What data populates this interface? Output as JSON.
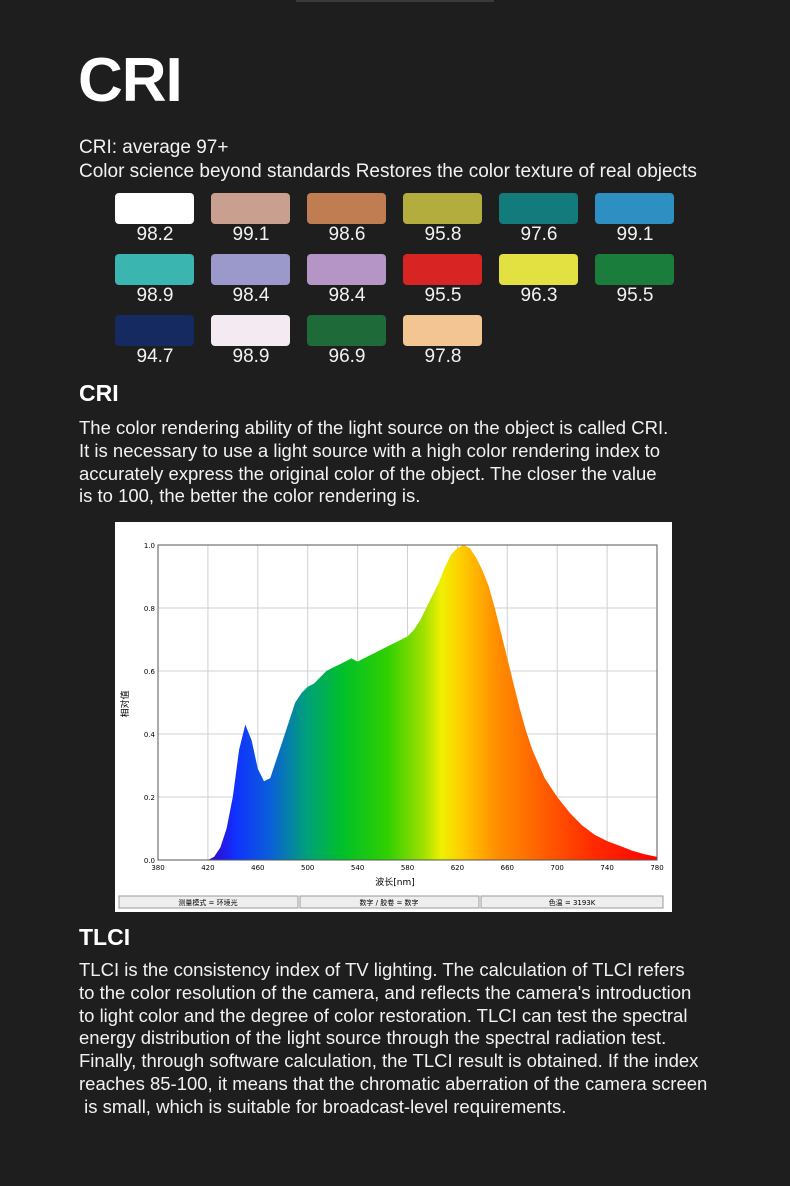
{
  "header": {
    "title": "CRI",
    "average_line": "CRI: average 97+",
    "tagline": "Color science beyond standards Restores the color texture of real objects"
  },
  "swatches": [
    {
      "color": "#ffffff",
      "value": "98.2"
    },
    {
      "color": "#c9a08f",
      "value": "99.1"
    },
    {
      "color": "#c07d51",
      "value": "98.6"
    },
    {
      "color": "#b2ad3c",
      "value": "95.8"
    },
    {
      "color": "#137b7b",
      "value": "97.6"
    },
    {
      "color": "#2e90c2",
      "value": "99.1"
    },
    {
      "color": "#3ab5b0",
      "value": "98.9"
    },
    {
      "color": "#9b98cc",
      "value": "98.4"
    },
    {
      "color": "#b495c6",
      "value": "98.4"
    },
    {
      "color": "#d92424",
      "value": "95.5"
    },
    {
      "color": "#e3e042",
      "value": "96.3"
    },
    {
      "color": "#1b7d3c",
      "value": "95.5"
    },
    {
      "color": "#152a60",
      "value": "94.7"
    },
    {
      "color": "#f4ebf2",
      "value": "98.9"
    },
    {
      "color": "#1e6a38",
      "value": "96.9"
    },
    {
      "color": "#f2c592",
      "value": "97.8"
    }
  ],
  "cri_section": {
    "heading": "CRI",
    "lines": [
      "The color rendering ability of the light source on the object is called CRI.",
      "It is necessary to use a light source with a high color rendering index to",
      "accurately express the original color of the object. The closer the value",
      "is to 100, the better the color rendering is."
    ]
  },
  "tlci_section": {
    "heading": "TLCI",
    "lines": [
      "TLCI is the consistency index of TV lighting. The calculation of TLCI refers",
      "to the color resolution of the camera, and reflects the camera's introduction",
      "to light color and the degree of color restoration. TLCI can test the spectral",
      "energy distribution of the light source through the spectral radiation test.",
      "Finally, through software calculation, the TLCI result is obtained. If the index",
      "reaches 85-100, it means that the chromatic aberration of the camera screen",
      " is small, which is suitable for broadcast-level requirements."
    ]
  },
  "chart_data": {
    "type": "area",
    "title": "",
    "xlabel": "波长[nm]",
    "ylabel": "相对值",
    "xlim": [
      380,
      780
    ],
    "ylim": [
      0,
      1.0
    ],
    "x_ticks": [
      "380",
      "420",
      "460",
      "500",
      "540",
      "580",
      "620",
      "660",
      "700",
      "740",
      "780"
    ],
    "y_ticks": [
      "0.0",
      "0.2",
      "0.4",
      "0.6",
      "0.8",
      "1.0"
    ],
    "grid": true,
    "fill": "visible-spectrum gradient",
    "series": [
      {
        "x": [
          420,
          425,
          430,
          435,
          440,
          445,
          450,
          455,
          460,
          465,
          470,
          475,
          480,
          485,
          490,
          495,
          500,
          505,
          510,
          515,
          520,
          525,
          530,
          535,
          540,
          545,
          550,
          555,
          560,
          565,
          570,
          575,
          580,
          585,
          590,
          595,
          600,
          605,
          610,
          615,
          620,
          625,
          630,
          635,
          640,
          645,
          650,
          655,
          660,
          665,
          670,
          675,
          680,
          690,
          700,
          710,
          720,
          730,
          740,
          750,
          760,
          770,
          780
        ],
        "y": [
          0.0,
          0.01,
          0.04,
          0.1,
          0.2,
          0.35,
          0.43,
          0.38,
          0.29,
          0.25,
          0.26,
          0.32,
          0.38,
          0.44,
          0.5,
          0.53,
          0.55,
          0.56,
          0.58,
          0.6,
          0.61,
          0.62,
          0.63,
          0.64,
          0.63,
          0.64,
          0.65,
          0.66,
          0.67,
          0.68,
          0.69,
          0.7,
          0.71,
          0.73,
          0.76,
          0.8,
          0.84,
          0.88,
          0.93,
          0.97,
          0.99,
          1.0,
          0.99,
          0.96,
          0.92,
          0.87,
          0.8,
          0.72,
          0.64,
          0.56,
          0.48,
          0.41,
          0.35,
          0.26,
          0.2,
          0.15,
          0.11,
          0.08,
          0.06,
          0.045,
          0.03,
          0.018,
          0.01
        ]
      }
    ],
    "footer": {
      "mode": "测量模式 = 环境光",
      "display": "数字 / 胶卷 = 数字",
      "cct": "色温 = 3193K"
    }
  }
}
